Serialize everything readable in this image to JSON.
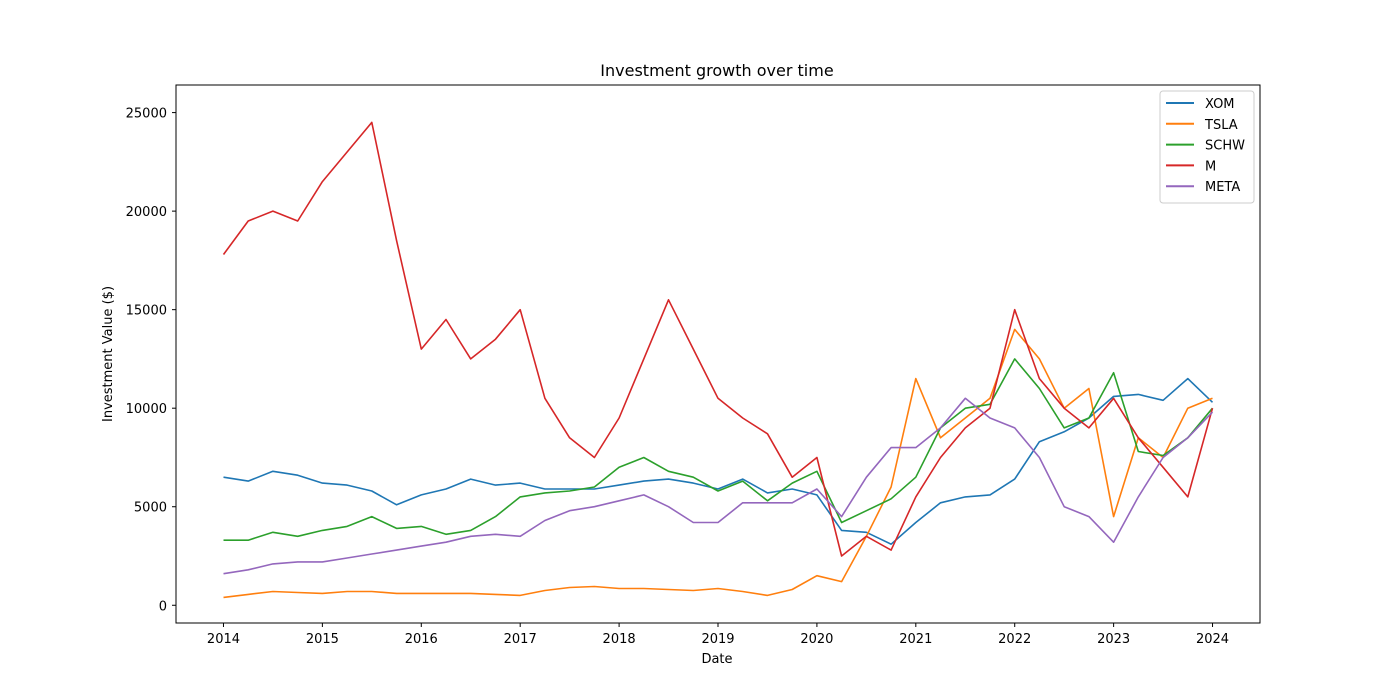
{
  "chart_data": {
    "type": "line",
    "title": "Investment growth over time",
    "xlabel": "Date",
    "ylabel": "Investment Value ($)",
    "xlim": [
      2013.52,
      2024.48
    ],
    "ylim": [
      -900,
      26400
    ],
    "x_ticks": [
      {
        "value": 2014,
        "label": "2014"
      },
      {
        "value": 2015,
        "label": "2015"
      },
      {
        "value": 2016,
        "label": "2016"
      },
      {
        "value": 2017,
        "label": "2017"
      },
      {
        "value": 2018,
        "label": "2018"
      },
      {
        "value": 2019,
        "label": "2019"
      },
      {
        "value": 2020,
        "label": "2020"
      },
      {
        "value": 2021,
        "label": "2021"
      },
      {
        "value": 2022,
        "label": "2022"
      },
      {
        "value": 2023,
        "label": "2023"
      },
      {
        "value": 2024,
        "label": "2024"
      }
    ],
    "y_ticks": [
      {
        "value": 0,
        "label": "0"
      },
      {
        "value": 5000,
        "label": "5000"
      },
      {
        "value": 10000,
        "label": "10000"
      },
      {
        "value": 15000,
        "label": "15000"
      },
      {
        "value": 20000,
        "label": "20000"
      },
      {
        "value": 25000,
        "label": "25000"
      }
    ],
    "grid": false,
    "legend": "top-right",
    "x": [
      2014.0,
      2014.25,
      2014.5,
      2014.75,
      2015.0,
      2015.25,
      2015.5,
      2015.75,
      2016.0,
      2016.25,
      2016.5,
      2016.75,
      2017.0,
      2017.25,
      2017.5,
      2017.75,
      2018.0,
      2018.25,
      2018.5,
      2018.75,
      2019.0,
      2019.25,
      2019.5,
      2019.75,
      2020.0,
      2020.25,
      2020.5,
      2020.75,
      2021.0,
      2021.25,
      2021.5,
      2021.75,
      2022.0,
      2022.25,
      2022.5,
      2022.75,
      2023.0,
      2023.25,
      2023.5,
      2023.75,
      2024.0
    ],
    "series": [
      {
        "name": "XOM",
        "color": "#1f77b4",
        "values": [
          6500,
          6300,
          6800,
          6600,
          6200,
          6100,
          5800,
          5100,
          5600,
          5900,
          6400,
          6100,
          6200,
          5900,
          5900,
          5900,
          6100,
          6300,
          6400,
          6200,
          5900,
          6400,
          5700,
          5900,
          5600,
          3800,
          3700,
          3100,
          4200,
          5200,
          5500,
          5600,
          6400,
          8300,
          8800,
          9500,
          10600,
          10700,
          10400,
          11500,
          10300
        ]
      },
      {
        "name": "TSLA",
        "color": "#ff7f0e",
        "values": [
          400,
          550,
          700,
          650,
          600,
          700,
          700,
          600,
          600,
          600,
          600,
          550,
          500,
          750,
          900,
          950,
          850,
          850,
          800,
          750,
          850,
          700,
          500,
          800,
          1500,
          1200,
          3500,
          6000,
          11500,
          8500,
          9500,
          10500,
          14000,
          12500,
          10000,
          11000,
          4500,
          8500,
          7500,
          10000,
          10500
        ]
      },
      {
        "name": "SCHW",
        "color": "#2ca02c",
        "values": [
          3300,
          3300,
          3700,
          3500,
          3800,
          4000,
          4500,
          3900,
          4000,
          3600,
          3800,
          4500,
          5500,
          5700,
          5800,
          6000,
          7000,
          7500,
          6800,
          6500,
          5800,
          6300,
          5300,
          6200,
          6800,
          4200,
          4800,
          5400,
          6500,
          9000,
          10000,
          10200,
          12500,
          11000,
          9000,
          9500,
          11800,
          7800,
          7600,
          8500,
          10000
        ]
      },
      {
        "name": "M",
        "color": "#d62728",
        "values": [
          17800,
          19500,
          20000,
          19500,
          21500,
          23000,
          24500,
          18500,
          13000,
          14500,
          12500,
          13500,
          15000,
          10500,
          8500,
          7500,
          9500,
          12500,
          15500,
          13000,
          10500,
          9500,
          8700,
          6500,
          7500,
          2500,
          3500,
          2800,
          5500,
          7500,
          9000,
          10000,
          15000,
          11500,
          10000,
          9000,
          10500,
          8500,
          7000,
          5500,
          10000
        ]
      },
      {
        "name": "META",
        "color": "#9467bd",
        "values": [
          1600,
          1800,
          2100,
          2200,
          2200,
          2400,
          2600,
          2800,
          3000,
          3200,
          3500,
          3600,
          3500,
          4300,
          4800,
          5000,
          5300,
          5600,
          5000,
          4200,
          4200,
          5200,
          5200,
          5200,
          5900,
          4500,
          6500,
          8000,
          8000,
          9000,
          10500,
          9500,
          9000,
          7500,
          5000,
          4500,
          3200,
          5500,
          7500,
          8500,
          9800
        ]
      }
    ]
  }
}
